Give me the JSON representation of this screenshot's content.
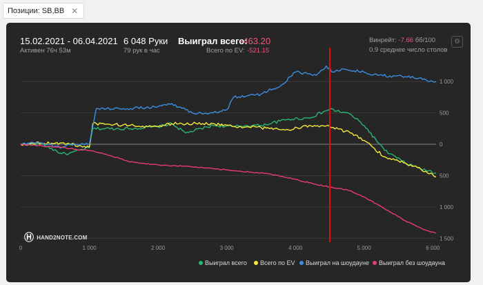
{
  "filter_tab": {
    "label": "Позиции: SB,BB",
    "close_symbol": "✕"
  },
  "header": {
    "date_range": "15.02.2021 - 06.04.2021",
    "active_time": "Активен 76ч 53м",
    "hands": "6 048 Руки",
    "hands_per_hour": "79 рук в час",
    "won_label": "Выиграл всего:",
    "won_value": "-463.20",
    "ev_label": "Всего по EV:",
    "ev_value": "-521.15",
    "winrate_label": "Винрейт:",
    "winrate_value": "-7.66",
    "winrate_unit": "бб/100",
    "avg_tables": "0.9 среднее число столов"
  },
  "logo_text": "HAND2NOTE.COM",
  "colors": {
    "won": "#2bb673",
    "ev": "#f5ea3a",
    "showdown": "#3b8fe0",
    "nonshowdown": "#e83b73",
    "marker": "#e01010"
  },
  "chart_data": {
    "type": "line",
    "xlim": [
      0,
      6048
    ],
    "ylim": [
      -1530,
      1300
    ],
    "x_ticks": [
      0,
      1000,
      2000,
      3000,
      4000,
      5000,
      6000
    ],
    "x_tick_labels": [
      "0",
      "1 000",
      "2 000",
      "3 000",
      "4 000",
      "5 000",
      "6 000"
    ],
    "y_ticks": [
      1000,
      500,
      0,
      -500,
      -1000,
      -1500
    ],
    "y_tick_labels": [
      "1 000",
      "500",
      "0",
      "500",
      "1 000",
      "1 500"
    ],
    "marker_x": 4500,
    "series": [
      {
        "name": "Выиграл всего",
        "color": "#2bb673",
        "x": [
          0,
          300,
          600,
          700,
          1000,
          1050,
          1600,
          2000,
          2200,
          2400,
          2800,
          3100,
          3300,
          3500,
          3900,
          4200,
          4500,
          4800,
          5000,
          5300,
          5600,
          5900,
          6048
        ],
        "y": [
          0,
          10,
          -150,
          -150,
          -50,
          250,
          250,
          280,
          330,
          180,
          300,
          280,
          300,
          300,
          400,
          420,
          560,
          480,
          300,
          -100,
          -300,
          -420,
          -460
        ]
      },
      {
        "name": "Всего по EV",
        "color": "#f5ea3a",
        "x": [
          0,
          300,
          600,
          1000,
          1050,
          2000,
          2200,
          2800,
          3100,
          3300,
          3900,
          4200,
          4500,
          4800,
          5000,
          5300,
          5600,
          5900,
          6048
        ],
        "y": [
          0,
          20,
          20,
          -50,
          330,
          280,
          330,
          330,
          280,
          280,
          230,
          300,
          280,
          180,
          60,
          -200,
          -300,
          -430,
          -520
        ]
      },
      {
        "name": "Выиграл на шоудауне",
        "color": "#3b8fe0",
        "x": [
          0,
          300,
          600,
          700,
          1000,
          1100,
          1600,
          2000,
          2200,
          2500,
          2800,
          3000,
          3100,
          3500,
          3800,
          4000,
          4300,
          4450,
          4550,
          4700,
          5000,
          5200,
          5600,
          5900,
          6048
        ],
        "y": [
          0,
          20,
          -50,
          0,
          0,
          570,
          570,
          600,
          650,
          500,
          500,
          550,
          750,
          800,
          950,
          1150,
          1100,
          1250,
          1150,
          1200,
          1150,
          1100,
          1080,
          1030,
          1000
        ]
      },
      {
        "name": "Выиграл без шоудауна",
        "color": "#e83b73",
        "x": [
          0,
          600,
          800,
          1000,
          1200,
          1600,
          2000,
          2400,
          2800,
          3200,
          3600,
          4000,
          4300,
          4500,
          4800,
          5000,
          5300,
          5600,
          5900,
          6048
        ],
        "y": [
          0,
          -50,
          -80,
          -100,
          -150,
          -280,
          -330,
          -350,
          -390,
          -430,
          -470,
          -560,
          -640,
          -680,
          -740,
          -840,
          -1030,
          -1220,
          -1370,
          -1420
        ]
      }
    ]
  }
}
